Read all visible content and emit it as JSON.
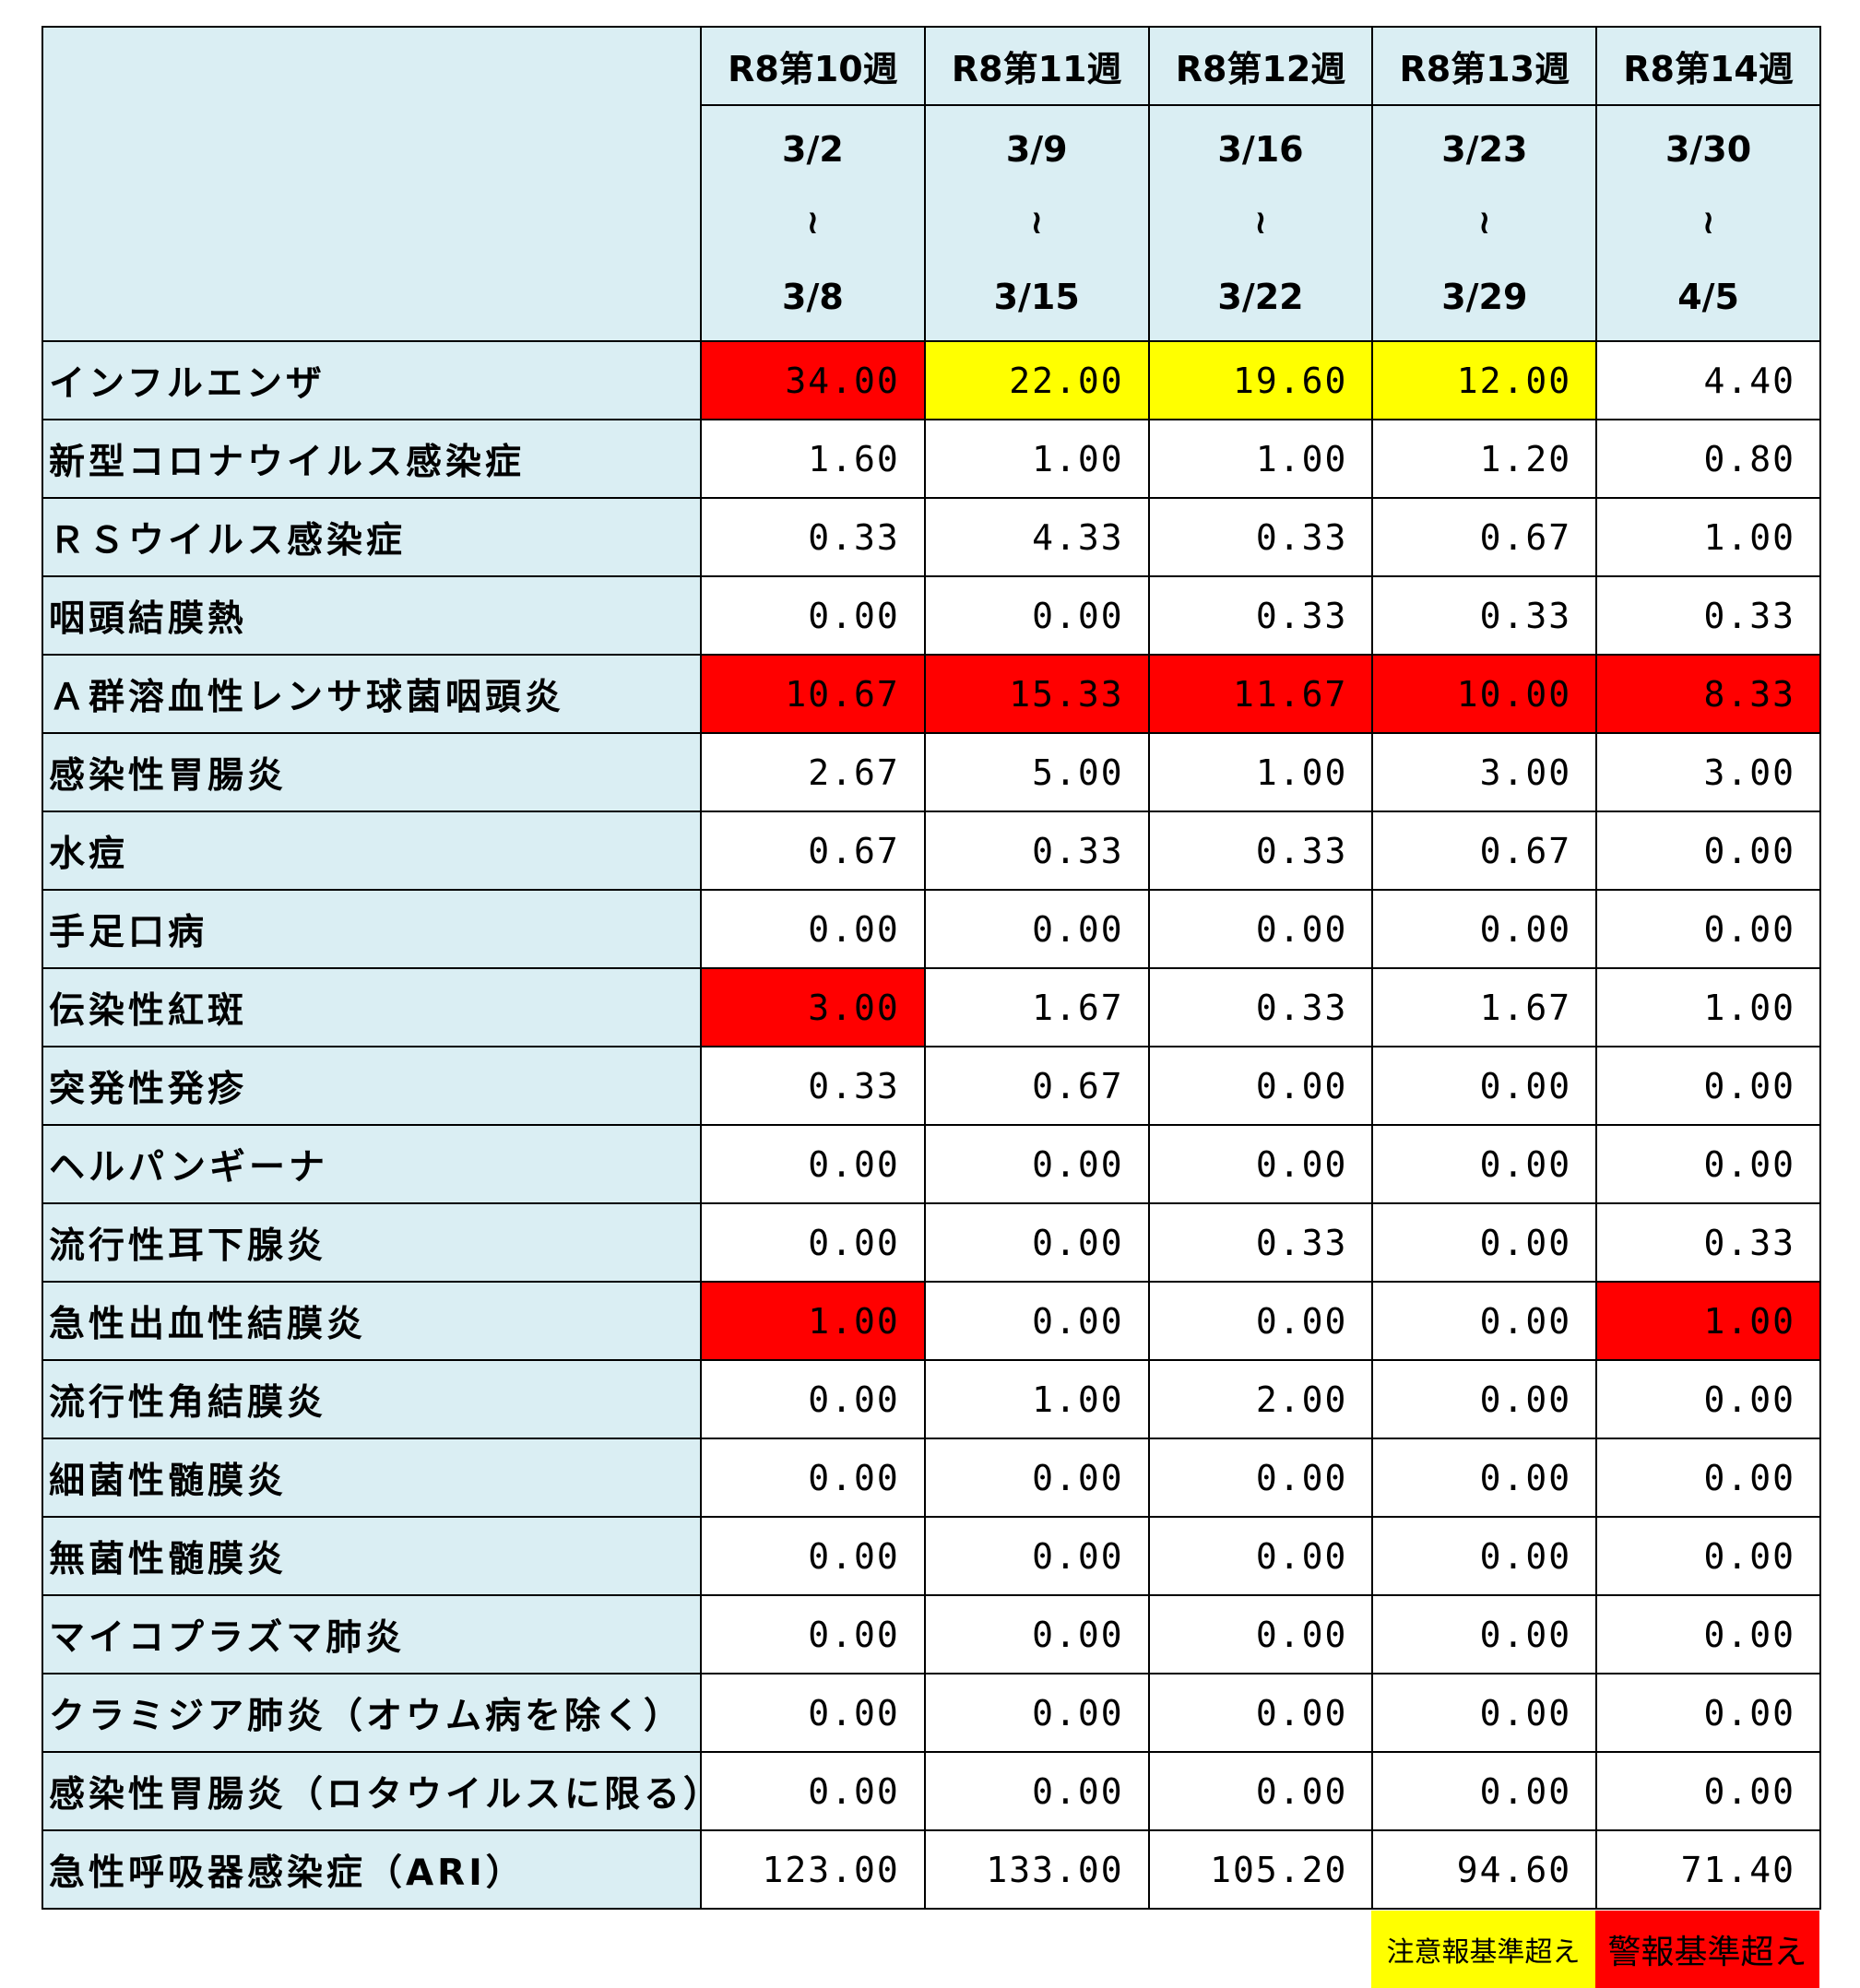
{
  "colors": {
    "header_bg": "#daeef3",
    "caution": "#ffff00",
    "alarm": "#ff0000"
  },
  "weeks": [
    {
      "label": "R8第10週",
      "start": "3/2",
      "sep": "≀",
      "end": "3/8"
    },
    {
      "label": "R8第11週",
      "start": "3/9",
      "sep": "≀",
      "end": "3/15"
    },
    {
      "label": "R8第12週",
      "start": "3/16",
      "sep": "≀",
      "end": "3/22"
    },
    {
      "label": "R8第13週",
      "start": "3/23",
      "sep": "≀",
      "end": "3/29"
    },
    {
      "label": "R8第14週",
      "start": "3/30",
      "sep": "≀",
      "end": "4/5"
    }
  ],
  "rows": [
    {
      "name": "インフルエンザ",
      "values": [
        "34.00",
        "22.00",
        "19.60",
        "12.00",
        "4.40"
      ],
      "levels": [
        "alarm",
        "caution",
        "caution",
        "caution",
        "normal"
      ]
    },
    {
      "name": "新型コロナウイルス感染症",
      "values": [
        "1.60",
        "1.00",
        "1.00",
        "1.20",
        "0.80"
      ],
      "levels": [
        "normal",
        "normal",
        "normal",
        "normal",
        "normal"
      ]
    },
    {
      "name": "ＲＳウイルス感染症",
      "values": [
        "0.33",
        "4.33",
        "0.33",
        "0.67",
        "1.00"
      ],
      "levels": [
        "normal",
        "normal",
        "normal",
        "normal",
        "normal"
      ]
    },
    {
      "name": "咽頭結膜熱",
      "values": [
        "0.00",
        "0.00",
        "0.33",
        "0.33",
        "0.33"
      ],
      "levels": [
        "normal",
        "normal",
        "normal",
        "normal",
        "normal"
      ]
    },
    {
      "name": "Ａ群溶血性レンサ球菌咽頭炎",
      "values": [
        "10.67",
        "15.33",
        "11.67",
        "10.00",
        "8.33"
      ],
      "levels": [
        "alarm",
        "alarm",
        "alarm",
        "alarm",
        "alarm"
      ]
    },
    {
      "name": "感染性胃腸炎",
      "values": [
        "2.67",
        "5.00",
        "1.00",
        "3.00",
        "3.00"
      ],
      "levels": [
        "normal",
        "normal",
        "normal",
        "normal",
        "normal"
      ]
    },
    {
      "name": "水痘",
      "values": [
        "0.67",
        "0.33",
        "0.33",
        "0.67",
        "0.00"
      ],
      "levels": [
        "normal",
        "normal",
        "normal",
        "normal",
        "normal"
      ]
    },
    {
      "name": "手足口病",
      "values": [
        "0.00",
        "0.00",
        "0.00",
        "0.00",
        "0.00"
      ],
      "levels": [
        "normal",
        "normal",
        "normal",
        "normal",
        "normal"
      ]
    },
    {
      "name": "伝染性紅斑",
      "values": [
        "3.00",
        "1.67",
        "0.33",
        "1.67",
        "1.00"
      ],
      "levels": [
        "alarm",
        "normal",
        "normal",
        "normal",
        "normal"
      ]
    },
    {
      "name": "突発性発疹",
      "values": [
        "0.33",
        "0.67",
        "0.00",
        "0.00",
        "0.00"
      ],
      "levels": [
        "normal",
        "normal",
        "normal",
        "normal",
        "normal"
      ]
    },
    {
      "name": "ヘルパンギーナ",
      "values": [
        "0.00",
        "0.00",
        "0.00",
        "0.00",
        "0.00"
      ],
      "levels": [
        "normal",
        "normal",
        "normal",
        "normal",
        "normal"
      ]
    },
    {
      "name": "流行性耳下腺炎",
      "values": [
        "0.00",
        "0.00",
        "0.33",
        "0.00",
        "0.33"
      ],
      "levels": [
        "normal",
        "normal",
        "normal",
        "normal",
        "normal"
      ]
    },
    {
      "name": "急性出血性結膜炎",
      "values": [
        "1.00",
        "0.00",
        "0.00",
        "0.00",
        "1.00"
      ],
      "levels": [
        "alarm",
        "normal",
        "normal",
        "normal",
        "alarm"
      ]
    },
    {
      "name": "流行性角結膜炎",
      "values": [
        "0.00",
        "1.00",
        "2.00",
        "0.00",
        "0.00"
      ],
      "levels": [
        "normal",
        "normal",
        "normal",
        "normal",
        "normal"
      ]
    },
    {
      "name": "細菌性髄膜炎",
      "values": [
        "0.00",
        "0.00",
        "0.00",
        "0.00",
        "0.00"
      ],
      "levels": [
        "normal",
        "normal",
        "normal",
        "normal",
        "normal"
      ]
    },
    {
      "name": "無菌性髄膜炎",
      "values": [
        "0.00",
        "0.00",
        "0.00",
        "0.00",
        "0.00"
      ],
      "levels": [
        "normal",
        "normal",
        "normal",
        "normal",
        "normal"
      ]
    },
    {
      "name": "マイコプラズマ肺炎",
      "values": [
        "0.00",
        "0.00",
        "0.00",
        "0.00",
        "0.00"
      ],
      "levels": [
        "normal",
        "normal",
        "normal",
        "normal",
        "normal"
      ]
    },
    {
      "name": "クラミジア肺炎（オウム病を除く）",
      "values": [
        "0.00",
        "0.00",
        "0.00",
        "0.00",
        "0.00"
      ],
      "levels": [
        "normal",
        "normal",
        "normal",
        "normal",
        "normal"
      ]
    },
    {
      "name": "感染性胃腸炎（ロタウイルスに限る）",
      "values": [
        "0.00",
        "0.00",
        "0.00",
        "0.00",
        "0.00"
      ],
      "levels": [
        "normal",
        "normal",
        "normal",
        "normal",
        "normal"
      ]
    },
    {
      "name": "急性呼吸器感染症（ARI）",
      "values": [
        "123.00",
        "133.00",
        "105.20",
        "94.60",
        "71.40"
      ],
      "levels": [
        "normal",
        "normal",
        "normal",
        "normal",
        "normal"
      ]
    }
  ],
  "legend": {
    "caution_label": "注意報基準超え",
    "alarm_label": "警報基準超え"
  }
}
